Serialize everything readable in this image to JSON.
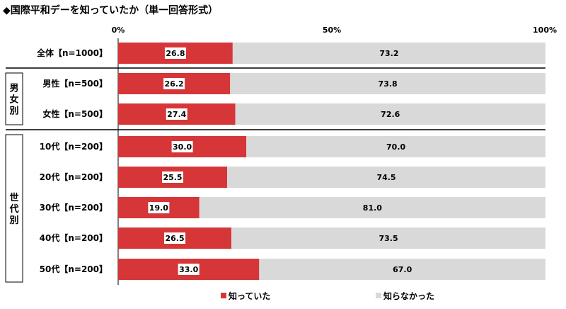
{
  "title": "◆国際平和デーを知っていたか（単一回答形式）",
  "colors": {
    "known": "#d63638",
    "unknown": "#d9d9d9",
    "label_box": "#ffffff",
    "divider": "#000000"
  },
  "groups": [
    {
      "label": "男女別",
      "rows": [
        1,
        2
      ]
    },
    {
      "label": "世代別",
      "rows": [
        3,
        4,
        5,
        6,
        7
      ]
    }
  ],
  "chart_data": {
    "type": "bar",
    "orientation": "horizontal",
    "stacked": true,
    "xlim": [
      0,
      100
    ],
    "ticks": [
      "0%",
      "50%",
      "100%"
    ],
    "tick_values": [
      0,
      50,
      100
    ],
    "legend_position": "bottom",
    "grid": false,
    "categories": [
      "全体【n=1000】",
      "男性【n=500】",
      "女性【n=500】",
      "10代【n=200】",
      "20代【n=200】",
      "30代【n=200】",
      "40代【n=200】",
      "50代【n=200】"
    ],
    "series": [
      {
        "name": "知っていた",
        "values": [
          26.8,
          26.2,
          27.4,
          30.0,
          25.5,
          19.0,
          26.5,
          33.0
        ]
      },
      {
        "name": "知らなかった",
        "values": [
          73.2,
          73.8,
          72.6,
          70.0,
          74.5,
          81.0,
          73.5,
          67.0
        ]
      }
    ]
  }
}
